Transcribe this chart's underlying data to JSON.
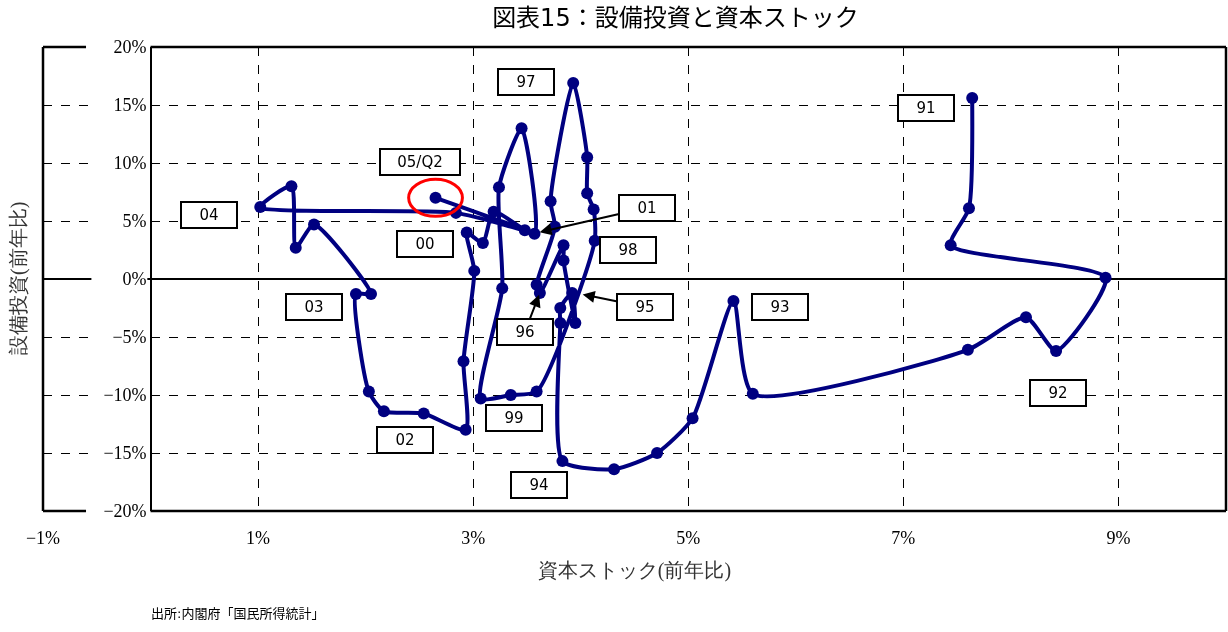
{
  "chart_data": {
    "type": "line",
    "title": "図表15：設備投資と資本ストック",
    "xlabel": "資本ストック(前年比)",
    "ylabel": "設備投資(前年比)",
    "xlim": [
      -1,
      10
    ],
    "ylim": [
      -20,
      20
    ],
    "xticks": [
      {
        "value": -1,
        "label": "−1%"
      },
      {
        "value": 1,
        "label": "1%"
      },
      {
        "value": 3,
        "label": "3%"
      },
      {
        "value": 5,
        "label": "5%"
      },
      {
        "value": 7,
        "label": "7%"
      },
      {
        "value": 9,
        "label": "9%"
      }
    ],
    "yticks": [
      {
        "value": -20,
        "label": "−20%"
      },
      {
        "value": -15,
        "label": "−15%"
      },
      {
        "value": -10,
        "label": "−10%"
      },
      {
        "value": -5,
        "label": "−5%"
      },
      {
        "value": 0,
        "label": "0%"
      },
      {
        "value": 5,
        "label": "5%"
      },
      {
        "value": 10,
        "label": "10%"
      },
      {
        "value": 15,
        "label": "15%"
      },
      {
        "value": 20,
        "label": "20%"
      }
    ],
    "grid": true,
    "marker": "circle",
    "line_style": "solid",
    "series": [
      {
        "color": "#000080",
        "x": [
          7.64,
          7.61,
          7.44,
          8.88,
          8.42,
          8.14,
          7.6,
          5.6,
          5.42,
          5.04,
          4.71,
          4.31,
          3.83,
          3.81,
          3.81,
          3.92,
          3.95,
          3.84,
          3.84,
          3.62,
          3.59,
          3.76,
          3.72,
          3.93,
          4.06,
          4.06,
          4.12,
          4.13,
          3.59,
          3.35,
          3.07,
          3.27,
          3.24,
          3.45,
          3.57,
          3.19,
          3.09,
          2.94,
          3.01,
          2.91,
          2.93,
          2.54,
          2.17,
          2.03,
          1.91,
          2.05,
          1.52,
          1.35,
          1.31,
          1.02,
          2.84,
          3.48,
          2.65
        ],
        "values": [
          15.6,
          6.1,
          2.9,
          0.1,
          -6.2,
          -3.3,
          -6.1,
          -9.9,
          -1.9,
          -12.0,
          -15.0,
          -16.4,
          -15.7,
          -3.8,
          -2.5,
          -1.2,
          -3.8,
          1.6,
          2.9,
          -1.2,
          -0.5,
          4.5,
          6.7,
          16.9,
          10.5,
          7.4,
          6.0,
          3.3,
          -9.7,
          -10.0,
          -10.3,
          -0.8,
          7.9,
          13.0,
          3.9,
          5.8,
          3.1,
          4.0,
          0.7,
          -7.1,
          -13.0,
          -11.6,
          -11.4,
          -9.7,
          -1.3,
          -1.3,
          4.7,
          2.7,
          8.0,
          6.2,
          5.7,
          4.2,
          7.0
        ]
      }
    ],
    "annotations": [
      "91",
      "92",
      "93",
      "94",
      {
        "text": "95",
        "x": 4.0,
        "y": -1.3
      },
      {
        "text": "96",
        "x": 3.62,
        "y": -1.2
      },
      "97",
      "98",
      "99",
      "00",
      {
        "text": "01",
        "x": 3.6,
        "y": 4.0
      },
      "02",
      "03",
      "04",
      {
        "text": "05/Q2",
        "x": 2.65,
        "y": 7.0
      },
      "出所:内閣府「国民所得統計」"
    ]
  }
}
